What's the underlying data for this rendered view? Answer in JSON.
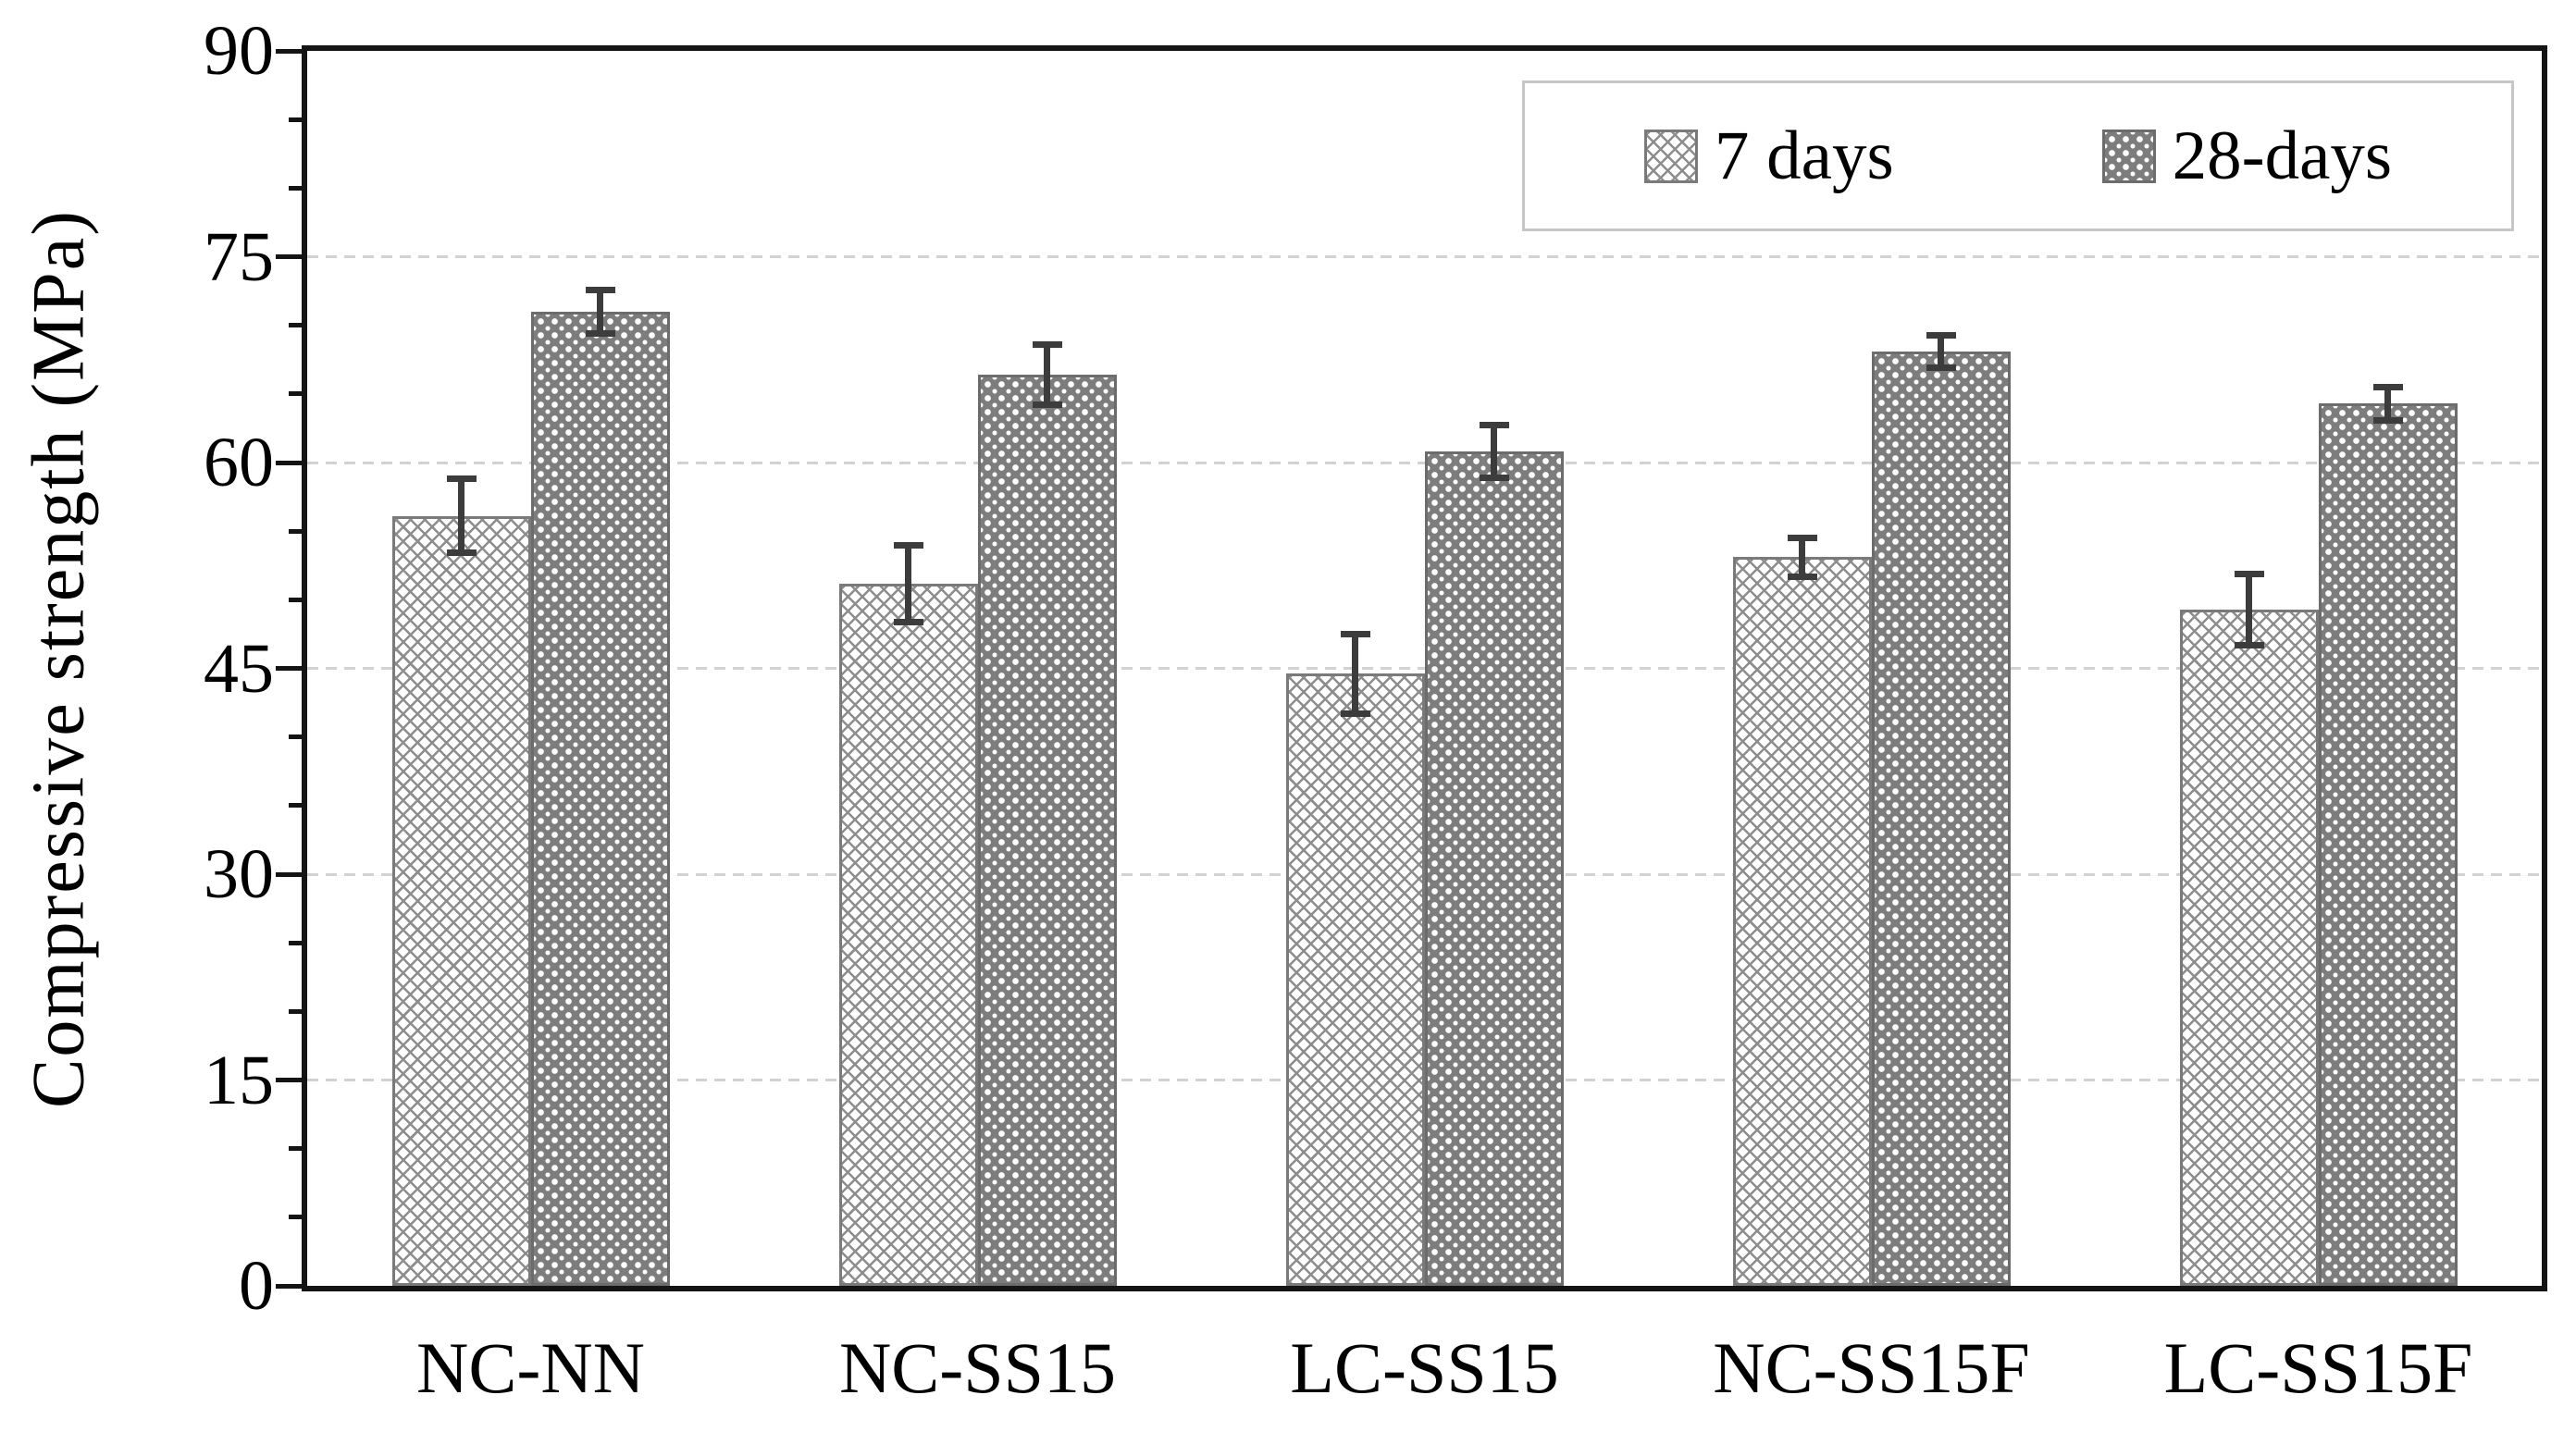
{
  "chart_data": {
    "type": "bar",
    "title": "",
    "categories": [
      "NC-NN",
      "NC-SS15",
      "LC-SS15",
      "NC-SS15F",
      "LC-SS15F"
    ],
    "series": [
      {
        "name": "7 days",
        "values": [
          56.1,
          51.2,
          44.6,
          53.1,
          49.3
        ],
        "errors": [
          2.7,
          2.8,
          2.9,
          1.4,
          2.6
        ],
        "swatch": "crosshatch-light"
      },
      {
        "name": "28-days",
        "values": [
          71.0,
          66.4,
          60.8,
          68.1,
          64.3
        ],
        "errors": [
          1.6,
          2.2,
          1.9,
          1.2,
          1.2
        ],
        "swatch": "dotted-dark"
      }
    ],
    "xlabel": "",
    "ylabel": "Compressive strength (MPa)",
    "ylim": [
      0,
      90
    ],
    "yticks": [
      0,
      15,
      30,
      45,
      60,
      75,
      90
    ],
    "minor_tick_step": 5,
    "grid": "horizontal-dashed-major",
    "legend_position": "top-right-inside",
    "bar_group_layout": "paired-touching"
  },
  "colors": {
    "frame": "#141414",
    "gridline": "#d2d2d2",
    "bar_dark_fill": "#7d7d7d",
    "bar_light_pattern": "#8d8d8d",
    "error_bar": "#3c3c3c",
    "legend_border": "#c6c6c6",
    "text": "#000000"
  }
}
